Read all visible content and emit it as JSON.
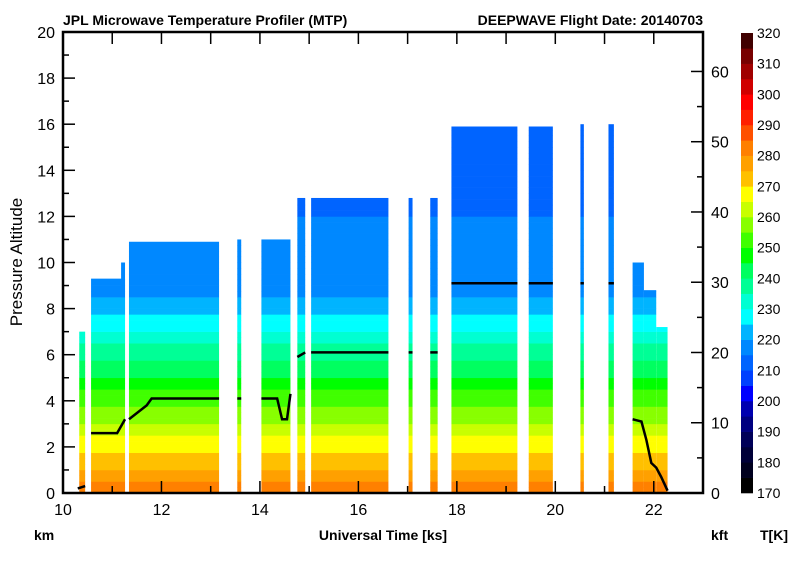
{
  "chart_data": {
    "type": "heatmap",
    "title_left": "JPL Microwave Temperature Profiler (MTP)",
    "title_right": "DEEPWAVE  Flight Date: 20140703",
    "xlabel": "Universal Time [ks]",
    "ylabel": "Pressure Altitude",
    "y_unit_left": "km",
    "y_unit_right": "kft",
    "colorbar_label": "T[K]",
    "xlim": [
      10,
      23
    ],
    "ylim": [
      0,
      20
    ],
    "y2lim_kft": [
      0,
      65.6
    ],
    "xticks": [
      "10",
      "12",
      "14",
      "16",
      "18",
      "20",
      "22"
    ],
    "yticks": [
      "0",
      "2",
      "4",
      "6",
      "8",
      "10",
      "12",
      "14",
      "16",
      "18",
      "20"
    ],
    "y2ticks": [
      "0",
      "10",
      "20",
      "30",
      "40",
      "50",
      "60"
    ],
    "colorbar_ticks": [
      "170",
      "180",
      "190",
      "200",
      "210",
      "220",
      "230",
      "240",
      "250",
      "260",
      "270",
      "280",
      "290",
      "300",
      "310",
      "320"
    ],
    "colorbar_range": [
      170,
      320
    ],
    "colorbar_colors": [
      "#000000",
      "#00001e",
      "#000038",
      "#000058",
      "#000080",
      "#0000b0",
      "#0000ff",
      "#0040ff",
      "#0064ff",
      "#0088ff",
      "#00b4ff",
      "#00ffff",
      "#00ffd2",
      "#00ff96",
      "#00ff60",
      "#00ff00",
      "#40ff00",
      "#88ff00",
      "#c8ff00",
      "#ffff00",
      "#ffc000",
      "#ffa000",
      "#ff8000",
      "#ff5000",
      "#ff2000",
      "#ff0000",
      "#d00000",
      "#a00000",
      "#780000",
      "#400000"
    ],
    "segments_ks_topkm": [
      [
        10.33,
        10.45,
        7.0
      ],
      [
        10.57,
        11.26,
        9.3
      ],
      [
        11.18,
        11.26,
        10.0
      ],
      [
        11.34,
        13.17,
        10.9
      ],
      [
        13.54,
        13.62,
        11.0
      ],
      [
        14.03,
        14.62,
        11.0
      ],
      [
        14.76,
        14.92,
        12.8
      ],
      [
        15.04,
        16.61,
        12.8
      ],
      [
        17.02,
        17.1,
        12.8
      ],
      [
        17.46,
        17.61,
        12.8
      ],
      [
        17.89,
        19.23,
        15.9
      ],
      [
        19.46,
        19.95,
        15.9
      ],
      [
        20.51,
        20.58,
        16.0
      ],
      [
        21.08,
        21.19,
        16.0
      ],
      [
        21.57,
        21.8,
        10.0
      ],
      [
        21.8,
        22.05,
        8.8
      ],
      [
        22.05,
        22.28,
        7.2
      ]
    ],
    "temperature_profile": {
      "surface_K": 283,
      "lapse_K_per_km": 7.5,
      "tropopause_km": 9.0,
      "upper_K": 218,
      "upper_lapse_K_per_km": 1.0
    },
    "aircraft_altitude_km": [
      [
        [
          10.3,
          0.2
        ],
        [
          10.45,
          0.3
        ]
      ],
      [
        [
          10.57,
          2.6
        ],
        [
          11.1,
          2.6
        ],
        [
          11.26,
          3.2
        ]
      ],
      [
        [
          11.34,
          3.2
        ],
        [
          11.7,
          3.8
        ],
        [
          11.8,
          4.1
        ],
        [
          13.17,
          4.1
        ]
      ],
      [
        [
          13.54,
          4.1
        ],
        [
          13.62,
          4.1
        ]
      ],
      [
        [
          14.03,
          4.1
        ],
        [
          14.35,
          4.1
        ],
        [
          14.45,
          3.2
        ],
        [
          14.55,
          3.2
        ],
        [
          14.62,
          4.3
        ]
      ],
      [
        [
          14.76,
          5.9
        ],
        [
          14.92,
          6.1
        ]
      ],
      [
        [
          15.04,
          6.1
        ],
        [
          16.61,
          6.1
        ]
      ],
      [
        [
          17.02,
          6.1
        ],
        [
          17.1,
          6.1
        ]
      ],
      [
        [
          17.46,
          6.1
        ],
        [
          17.61,
          6.1
        ]
      ],
      [
        [
          17.89,
          9.1
        ],
        [
          19.23,
          9.1
        ]
      ],
      [
        [
          19.46,
          9.1
        ],
        [
          19.95,
          9.1
        ]
      ],
      [
        [
          20.51,
          9.1
        ],
        [
          20.58,
          9.1
        ]
      ],
      [
        [
          21.08,
          9.1
        ],
        [
          21.19,
          9.1
        ]
      ],
      [
        [
          21.57,
          3.2
        ],
        [
          21.75,
          3.1
        ],
        [
          21.85,
          2.3
        ],
        [
          21.95,
          1.3
        ],
        [
          22.05,
          1.1
        ],
        [
          22.15,
          0.7
        ],
        [
          22.28,
          0.1
        ]
      ]
    ]
  }
}
